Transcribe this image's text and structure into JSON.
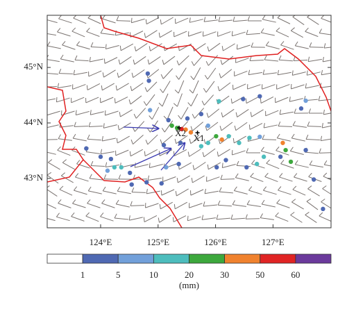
{
  "map": {
    "lon_ticks": [
      {
        "value": 124,
        "label": "124°E"
      },
      {
        "value": 125,
        "label": "125°E"
      },
      {
        "value": 126,
        "label": "126°E"
      },
      {
        "value": 127,
        "label": "127°E"
      }
    ],
    "lat_ticks": [
      {
        "value": 45,
        "label": "45°N"
      },
      {
        "value": 44,
        "label": "44°N"
      },
      {
        "value": 43,
        "label": "43°N"
      }
    ],
    "xlim": [
      123.07,
      128.01
    ],
    "ylim": [
      42.11,
      45.94
    ],
    "labels": [
      {
        "text": "X2",
        "lon": 125.39,
        "lat": 43.8
      },
      {
        "text": "X1",
        "lon": 125.71,
        "lat": 43.71
      }
    ],
    "colorbar": {
      "bounds": [
        1,
        5,
        10,
        20,
        30,
        50,
        60
      ],
      "colors": [
        "#ffffff",
        "#4f69b3",
        "#72a0da",
        "#4dbdbd",
        "#3da83d",
        "#f0822e",
        "#e02424",
        "#6b3a9c"
      ],
      "unit": "(mm)"
    },
    "stations": [
      {
        "lon": 124.82,
        "lat": 44.89,
        "precip": 3
      },
      {
        "lon": 124.84,
        "lat": 44.76,
        "precip": 3
      },
      {
        "lon": 126.48,
        "lat": 44.43,
        "precip": 3
      },
      {
        "lon": 126.77,
        "lat": 44.48,
        "precip": 3
      },
      {
        "lon": 126.06,
        "lat": 44.39,
        "precip": 15
      },
      {
        "lon": 127.57,
        "lat": 44.4,
        "precip": 7
      },
      {
        "lon": 127.49,
        "lat": 44.26,
        "precip": 3
      },
      {
        "lon": 124.86,
        "lat": 44.23,
        "precip": 7
      },
      {
        "lon": 125.18,
        "lat": 44.05,
        "precip": 3
      },
      {
        "lon": 125.24,
        "lat": 43.95,
        "precip": 25
      },
      {
        "lon": 125.33,
        "lat": 43.91,
        "precip": 25
      },
      {
        "lon": 125.41,
        "lat": 43.89,
        "precip": 55
      },
      {
        "lon": 125.48,
        "lat": 43.88,
        "precip": 40
      },
      {
        "lon": 125.57,
        "lat": 43.83,
        "precip": 40
      },
      {
        "lon": 125.51,
        "lat": 44.08,
        "precip": 3
      },
      {
        "lon": 125.75,
        "lat": 44.16,
        "precip": 3
      },
      {
        "lon": 125.87,
        "lat": 43.95,
        "precip": 7
      },
      {
        "lon": 126.01,
        "lat": 43.76,
        "precip": 25
      },
      {
        "lon": 126.11,
        "lat": 43.7,
        "precip": 40
      },
      {
        "lon": 126.23,
        "lat": 43.76,
        "precip": 15
      },
      {
        "lon": 126.41,
        "lat": 43.64,
        "precip": 15
      },
      {
        "lon": 126.59,
        "lat": 43.73,
        "precip": 15
      },
      {
        "lon": 126.77,
        "lat": 43.75,
        "precip": 7
      },
      {
        "lon": 125.75,
        "lat": 43.58,
        "precip": 15
      },
      {
        "lon": 125.87,
        "lat": 43.64,
        "precip": 15
      },
      {
        "lon": 125.39,
        "lat": 43.64,
        "precip": 3
      },
      {
        "lon": 125.1,
        "lat": 43.6,
        "precip": 3
      },
      {
        "lon": 127.17,
        "lat": 43.64,
        "precip": 40
      },
      {
        "lon": 127.22,
        "lat": 43.51,
        "precip": 25
      },
      {
        "lon": 127.31,
        "lat": 43.3,
        "precip": 25
      },
      {
        "lon": 127.13,
        "lat": 43.39,
        "precip": 3
      },
      {
        "lon": 127.57,
        "lat": 43.51,
        "precip": 3
      },
      {
        "lon": 126.84,
        "lat": 43.39,
        "precip": 15
      },
      {
        "lon": 126.72,
        "lat": 43.26,
        "precip": 15
      },
      {
        "lon": 126.54,
        "lat": 43.2,
        "precip": 3
      },
      {
        "lon": 126.18,
        "lat": 43.33,
        "precip": 3
      },
      {
        "lon": 126.02,
        "lat": 43.2,
        "precip": 3
      },
      {
        "lon": 124.18,
        "lat": 43.35,
        "precip": 3
      },
      {
        "lon": 124.24,
        "lat": 43.2,
        "precip": 15
      },
      {
        "lon": 124.36,
        "lat": 43.2,
        "precip": 15
      },
      {
        "lon": 124.12,
        "lat": 43.14,
        "precip": 7
      },
      {
        "lon": 124.0,
        "lat": 43.39,
        "precip": 3
      },
      {
        "lon": 123.75,
        "lat": 43.54,
        "precip": 3
      },
      {
        "lon": 124.51,
        "lat": 43.1,
        "precip": 3
      },
      {
        "lon": 124.54,
        "lat": 42.89,
        "precip": 3
      },
      {
        "lon": 124.8,
        "lat": 42.93,
        "precip": 3
      },
      {
        "lon": 125.06,
        "lat": 42.91,
        "precip": 3
      },
      {
        "lon": 125.14,
        "lat": 43.2,
        "precip": 7
      },
      {
        "lon": 125.36,
        "lat": 43.26,
        "precip": 3
      },
      {
        "lon": 127.71,
        "lat": 42.98,
        "precip": 3
      },
      {
        "lon": 127.87,
        "lat": 42.45,
        "precip": 3
      }
    ]
  }
}
